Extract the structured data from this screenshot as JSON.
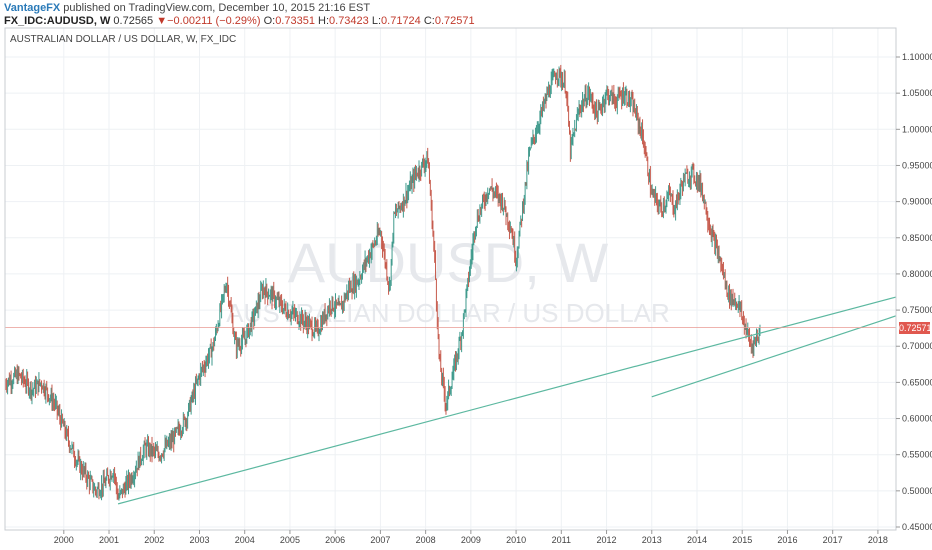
{
  "header": {
    "brand": "VantageFX",
    "published": " published on TradingView.com, December 10, 2015 21:16 EST"
  },
  "quote": {
    "symbol": "FX_IDC:AUDUSD, W",
    "last": "0.72565",
    "arrow": "▼",
    "change": "−0.00211 (−0.29%)",
    "o_label": "O:",
    "o": "0.73351",
    "h_label": "H:",
    "h": "0.73423",
    "l_label": "L:",
    "l": "0.71724",
    "c_label": "C:",
    "c": "0.72571"
  },
  "watermark": {
    "symbol": "AUDUSD, W",
    "name": "AUSTRALIAN DOLLAR / US DOLLAR"
  },
  "colors": {
    "up": "#3f9a8c",
    "down": "#c65a4c",
    "trendline": "#5cb8a0",
    "price_line": "#e89a94",
    "price_tag": "#e0584f",
    "grid": "#eef1f4"
  },
  "chart_data": {
    "type": "line",
    "title": "AUSTRALIAN DOLLAR / US DOLLAR, W, FX_IDC",
    "x_ticks": [
      "2000",
      "2001",
      "2002",
      "2003",
      "2004",
      "2005",
      "2006",
      "2007",
      "2008",
      "2009",
      "2010",
      "2011",
      "2012",
      "2013",
      "2014",
      "2015",
      "2016",
      "2017",
      "2018"
    ],
    "y_ticks": [
      "1.10000",
      "1.05000",
      "1.00000",
      "0.95000",
      "0.90000",
      "0.85000",
      "0.80000",
      "0.75000",
      "0.70000",
      "0.65000",
      "0.60000",
      "0.55000",
      "0.50000",
      "0.45000"
    ],
    "ylim": [
      0.45,
      1.1
    ],
    "xlim": [
      1999.2,
      2018.9
    ],
    "grid": true,
    "last_price": "0.72571",
    "series": [
      {
        "x": [
          1999.2,
          1999.5,
          1999.8,
          2000.0,
          2000.3,
          2000.6,
          2000.8,
          2001.0,
          2001.2,
          2001.4,
          2001.6,
          2001.7,
          2002.0,
          2002.3,
          2002.6,
          2002.9,
          2003.2,
          2003.5,
          2003.8,
          2004.0,
          2004.1,
          2004.3,
          2004.5,
          2004.7,
          2004.9,
          2005.1,
          2005.4,
          2005.7,
          2005.9,
          2006.1,
          2006.4,
          2006.6,
          2006.8,
          2007.0,
          2007.2,
          2007.5,
          2007.7,
          2007.8,
          2008.0,
          2008.3,
          2008.55,
          2008.7,
          2008.8,
          2008.95,
          2009.1,
          2009.3,
          2009.6,
          2009.9,
          2010.2,
          2010.4,
          2010.5,
          2010.8,
          2011.0,
          2011.2,
          2011.4,
          2011.6,
          2011.7,
          2011.9,
          2012.1,
          2012.3,
          2012.5,
          2012.7,
          2012.9,
          2013.1,
          2013.3,
          2013.5,
          2013.7,
          2013.9,
          2014.0,
          2014.2,
          2014.4,
          2014.6,
          2014.8,
          2015.0,
          2015.2,
          2015.4,
          2015.6,
          2015.7,
          2015.9
        ],
        "y": [
          0.65,
          0.66,
          0.64,
          0.65,
          0.62,
          0.57,
          0.54,
          0.52,
          0.5,
          0.51,
          0.53,
          0.49,
          0.52,
          0.56,
          0.55,
          0.57,
          0.6,
          0.66,
          0.7,
          0.76,
          0.79,
          0.7,
          0.71,
          0.74,
          0.78,
          0.77,
          0.75,
          0.74,
          0.73,
          0.72,
          0.76,
          0.75,
          0.78,
          0.79,
          0.82,
          0.86,
          0.78,
          0.88,
          0.9,
          0.94,
          0.96,
          0.82,
          0.68,
          0.62,
          0.66,
          0.72,
          0.87,
          0.92,
          0.9,
          0.86,
          0.82,
          0.97,
          1.01,
          1.05,
          1.08,
          1.06,
          0.97,
          1.03,
          1.05,
          1.02,
          1.05,
          1.04,
          1.05,
          1.03,
          0.99,
          0.91,
          0.89,
          0.91,
          0.89,
          0.93,
          0.94,
          0.92,
          0.86,
          0.82,
          0.77,
          0.76,
          0.72,
          0.7,
          0.72
        ]
      }
    ],
    "trendlines": [
      {
        "from": [
          2001.7,
          0.482
        ],
        "to": [
          2018.9,
          0.768
        ]
      },
      {
        "from": [
          2013.5,
          0.63
        ],
        "to": [
          2018.9,
          0.742
        ]
      }
    ]
  }
}
